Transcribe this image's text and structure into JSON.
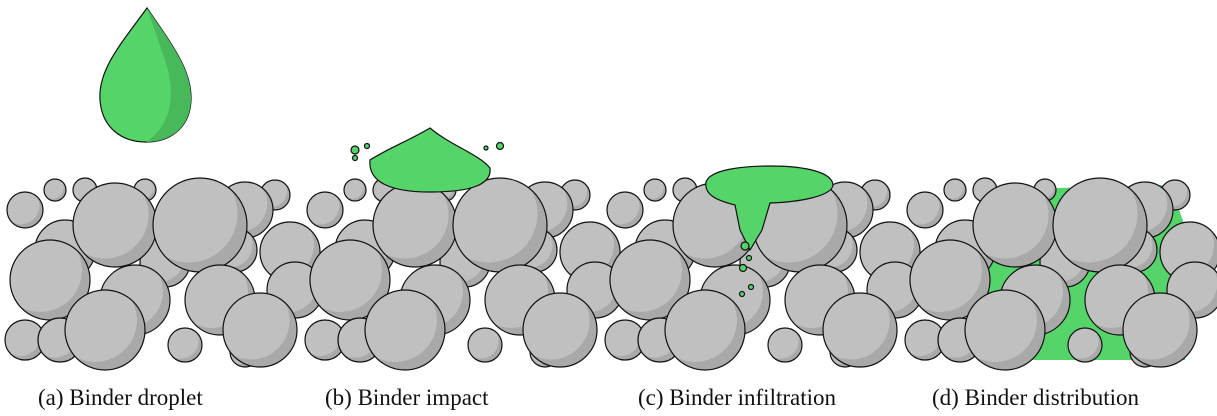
{
  "captions": [
    "(a) Binder droplet",
    "(b) Binder impact",
    "(c) Binder infiltration",
    "(d) Binder distribution"
  ]
}
